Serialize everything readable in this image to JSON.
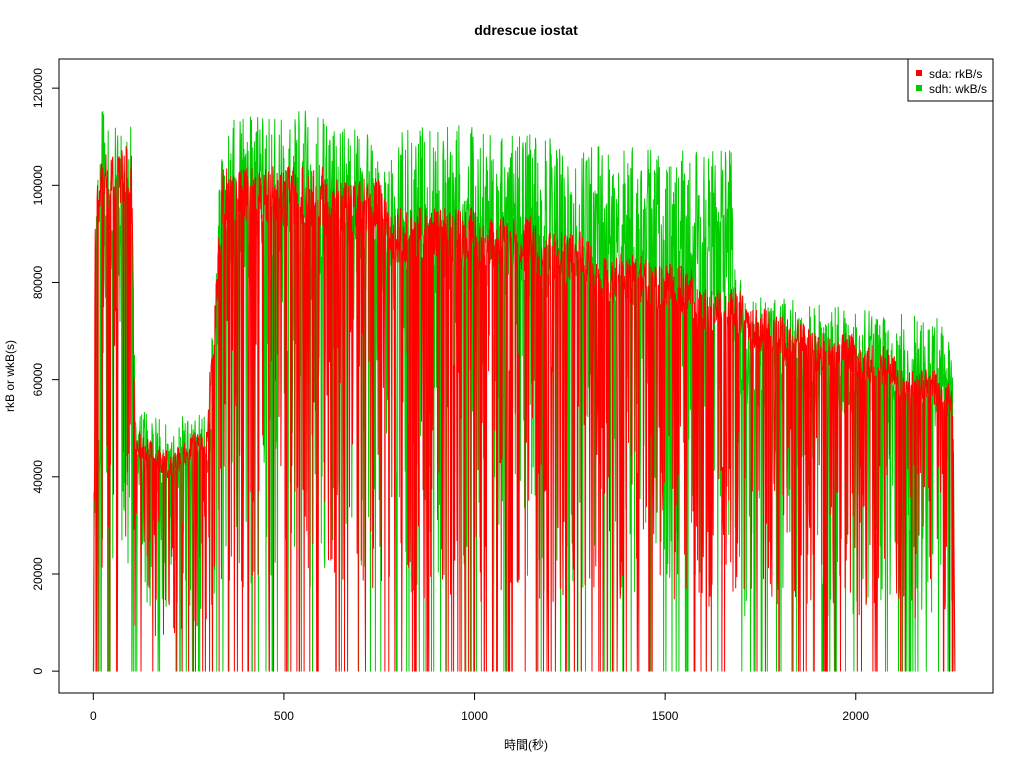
{
  "chart_data": {
    "type": "line",
    "title": "ddrescue iostat",
    "xlabel": "時間(秒)",
    "ylabel": "rkB or wkB(s)",
    "xlim": [
      -90,
      2360
    ],
    "ylim": [
      -4500,
      126000
    ],
    "x_ticks": [
      0,
      500,
      1000,
      1500,
      2000
    ],
    "x_tick_labels": [
      "0",
      "500",
      "1000",
      "1500",
      "2000"
    ],
    "y_ticks": [
      0,
      20000,
      40000,
      60000,
      80000,
      100000,
      120000
    ],
    "y_tick_labels": [
      "0",
      "20000",
      "40000",
      "60000",
      "80000",
      "100000",
      "120000"
    ],
    "legend_position": "top-right",
    "x_range": [
      0,
      2260
    ],
    "series": [
      {
        "name": "sda: rkB/s",
        "color": "#ff0000",
        "envelope": [
          [
            0,
            0
          ],
          [
            5,
            96000
          ],
          [
            20,
            108000
          ],
          [
            100,
            108000
          ],
          [
            110,
            50000
          ],
          [
            200,
            45000
          ],
          [
            300,
            52000
          ],
          [
            340,
            104000
          ],
          [
            480,
            104000
          ],
          [
            500,
            104000
          ],
          [
            600,
            104000
          ],
          [
            610,
            101500
          ],
          [
            660,
            101500
          ],
          [
            700,
            101700
          ],
          [
            760,
            101700
          ],
          [
            770,
            95500
          ],
          [
            1000,
            95500
          ],
          [
            1010,
            93500
          ],
          [
            1160,
            93500
          ],
          [
            1170,
            90500
          ],
          [
            1300,
            90500
          ],
          [
            1310,
            85800
          ],
          [
            1450,
            85800
          ],
          [
            1460,
            83800
          ],
          [
            1570,
            83800
          ],
          [
            1580,
            78800
          ],
          [
            1700,
            78800
          ],
          [
            1710,
            74500
          ],
          [
            1800,
            74500
          ],
          [
            1810,
            72700
          ],
          [
            1880,
            72700
          ],
          [
            1890,
            69800
          ],
          [
            1990,
            69800
          ],
          [
            2000,
            67000
          ],
          [
            2100,
            67000
          ],
          [
            2110,
            62200
          ],
          [
            2210,
            62200
          ],
          [
            2220,
            59500
          ],
          [
            2255,
            59500
          ],
          [
            2260,
            0
          ]
        ]
      },
      {
        "name": "sdh: wkB/s",
        "color": "#00cc00",
        "envelope": [
          [
            0,
            0
          ],
          [
            5,
            85000
          ],
          [
            20,
            112000
          ],
          [
            100,
            110000
          ],
          [
            110,
            52000
          ],
          [
            200,
            50000
          ],
          [
            300,
            52000
          ],
          [
            340,
            110000
          ],
          [
            480,
            110000
          ],
          [
            500,
            112000
          ],
          [
            600,
            110000
          ],
          [
            700,
            108000
          ],
          [
            1000,
            108000
          ],
          [
            1160,
            106000
          ],
          [
            1300,
            104000
          ],
          [
            1450,
            104000
          ],
          [
            1680,
            103000
          ],
          [
            1690,
            80000
          ],
          [
            1710,
            74500
          ],
          [
            1800,
            74000
          ],
          [
            1990,
            72000
          ],
          [
            2210,
            70000
          ],
          [
            2255,
            68000
          ],
          [
            2260,
            0
          ]
        ]
      }
    ]
  },
  "legend": {
    "items": [
      {
        "label": "sda: rkB/s",
        "color": "#ff0000"
      },
      {
        "label": "sdh: wkB/s",
        "color": "#00cc00"
      }
    ]
  }
}
